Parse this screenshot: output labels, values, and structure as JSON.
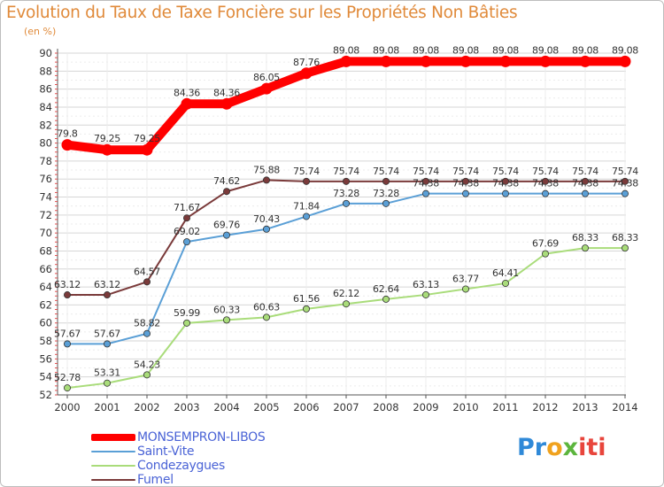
{
  "chart_data": {
    "type": "line",
    "title": "Evolution du Taux de Taxe Foncière sur les Propriétés Non Bâties",
    "ylabel": "(en %)",
    "xlabel": "",
    "ylim": [
      52,
      90
    ],
    "yticks": [
      "52",
      "54",
      "56",
      "58",
      "60",
      "62",
      "64",
      "66",
      "68",
      "70",
      "72",
      "74",
      "76",
      "78",
      "80",
      "82",
      "84",
      "86",
      "88",
      "90"
    ],
    "categories": [
      "2000",
      "2001",
      "2002",
      "2003",
      "2004",
      "2005",
      "2006",
      "2007",
      "2008",
      "2009",
      "2010",
      "2011",
      "2012",
      "2013",
      "2014"
    ],
    "series": [
      {
        "name": "MONSEMPRON-LIBOS",
        "color": "#ff0000",
        "values": [
          79.8,
          79.25,
          79.25,
          84.36,
          84.36,
          86.05,
          87.76,
          89.08,
          89.08,
          89.08,
          89.08,
          89.08,
          89.08,
          89.08,
          89.08
        ],
        "labels": [
          "79.8",
          "79.25",
          "79.25",
          "84.36",
          "84.36",
          "86.05",
          "87.76",
          "89.08",
          "89.08",
          "89.08",
          "89.08",
          "89.08",
          "89.08",
          "89.08",
          "89.08"
        ]
      },
      {
        "name": "Saint-Vite",
        "color": "#5a9fd6",
        "values": [
          57.67,
          57.67,
          58.82,
          69.02,
          69.76,
          70.43,
          71.84,
          73.28,
          73.28,
          74.38,
          74.38,
          74.38,
          74.38,
          74.38,
          74.38
        ],
        "labels": [
          "57.67",
          "57.67",
          "58.82",
          "69.02",
          "69.76",
          "70.43",
          "71.84",
          "73.28",
          "73.28",
          "74.38",
          "74.38",
          "74.38",
          "74.38",
          "74.38",
          "74.38"
        ]
      },
      {
        "name": "Condezaygues",
        "color": "#a9dc7a",
        "values": [
          52.78,
          53.31,
          54.23,
          59.99,
          60.33,
          60.63,
          61.56,
          62.12,
          62.64,
          63.13,
          63.77,
          64.41,
          67.69,
          68.33,
          68.33
        ],
        "labels": [
          "52.78",
          "53.31",
          "54.23",
          "59.99",
          "60.33",
          "60.63",
          "61.56",
          "62.12",
          "62.64",
          "63.13",
          "63.77",
          "64.41",
          "67.69",
          "68.33",
          "68.33"
        ]
      },
      {
        "name": "Fumel",
        "color": "#7a3a3a",
        "values": [
          63.12,
          63.12,
          64.57,
          71.67,
          74.62,
          75.88,
          75.74,
          75.74,
          75.74,
          75.74,
          75.74,
          75.74,
          75.74,
          75.74,
          75.74
        ],
        "labels": [
          "63.12",
          "63.12",
          "64.57",
          "71.67",
          "74.62",
          "75.88",
          "75.74",
          "75.74",
          "75.74",
          "75.74",
          "75.74",
          "75.74",
          "75.74",
          "75.74",
          "75.74"
        ]
      }
    ],
    "legend_position": "bottom-left"
  },
  "branding": {
    "logo_parts": [
      "Pr",
      "o",
      "x",
      "iti"
    ],
    "colors": {
      "title": "#e08a3a",
      "legend_text": "#4a63d6",
      "logo_blue": "#2f89d8",
      "logo_orange": "#f0a21e",
      "logo_green": "#5cb53d",
      "logo_red": "#e8453c"
    }
  }
}
